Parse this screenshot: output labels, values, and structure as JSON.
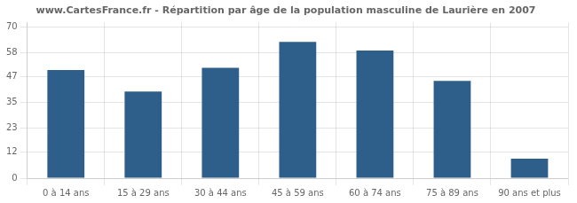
{
  "chart_data": {
    "type": "bar",
    "title": "www.CartesFrance.fr - Répartition par âge de la population masculine de Laurière en 2007",
    "categories": [
      "0 à 14 ans",
      "15 à 29 ans",
      "30 à 44 ans",
      "45 à 59 ans",
      "60 à 74 ans",
      "75 à 89 ans",
      "90 ans et plus"
    ],
    "values": [
      50,
      40,
      51,
      63,
      59,
      45,
      9
    ],
    "color": "#2e5f8a",
    "ylim": [
      0,
      72
    ],
    "yticks": [
      0,
      12,
      23,
      35,
      47,
      58,
      70
    ],
    "grid": true
  }
}
